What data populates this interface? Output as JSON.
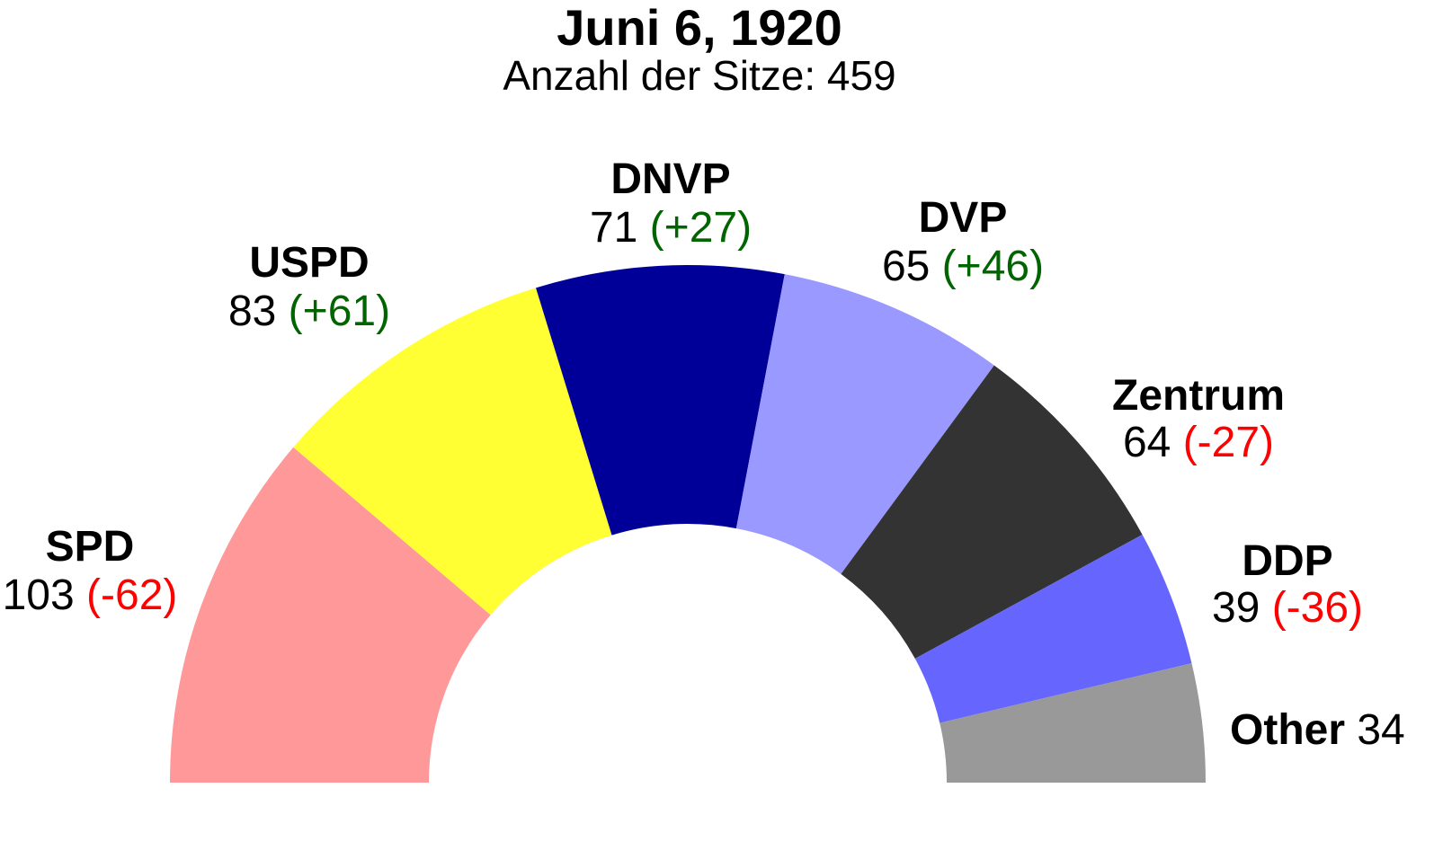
{
  "chart_data": {
    "type": "pie",
    "variant": "semicircle-parliament",
    "title": "Juni 6, 1920",
    "subtitle": "Anzahl der Sitze: 459",
    "total": 459,
    "colors": {
      "gain": "#006400",
      "loss": "#ff0000"
    },
    "slices": [
      {
        "name": "SPD",
        "seats": "103",
        "change": "(-62)",
        "value": 103,
        "color": "#ff9999",
        "change_type": "loss"
      },
      {
        "name": "USPD",
        "seats": "83",
        "change": "(+61)",
        "value": 83,
        "color": "#ffff33",
        "change_type": "gain"
      },
      {
        "name": "DNVP",
        "seats": "71",
        "change": "(+27)",
        "value": 71,
        "color": "#000099",
        "change_type": "gain"
      },
      {
        "name": "DVP",
        "seats": "65",
        "change": "(+46)",
        "value": 65,
        "color": "#9999ff",
        "change_type": "gain"
      },
      {
        "name": "Zentrum",
        "seats": "64",
        "change": "(-27)",
        "value": 64,
        "color": "#333333",
        "change_type": "loss"
      },
      {
        "name": "DDP",
        "seats": "39",
        "change": "(-36)",
        "value": 39,
        "color": "#6666ff",
        "change_type": "loss"
      },
      {
        "name": "Other",
        "seats": "34",
        "change": "",
        "value": 34,
        "color": "#999999",
        "change_type": "none"
      }
    ]
  }
}
